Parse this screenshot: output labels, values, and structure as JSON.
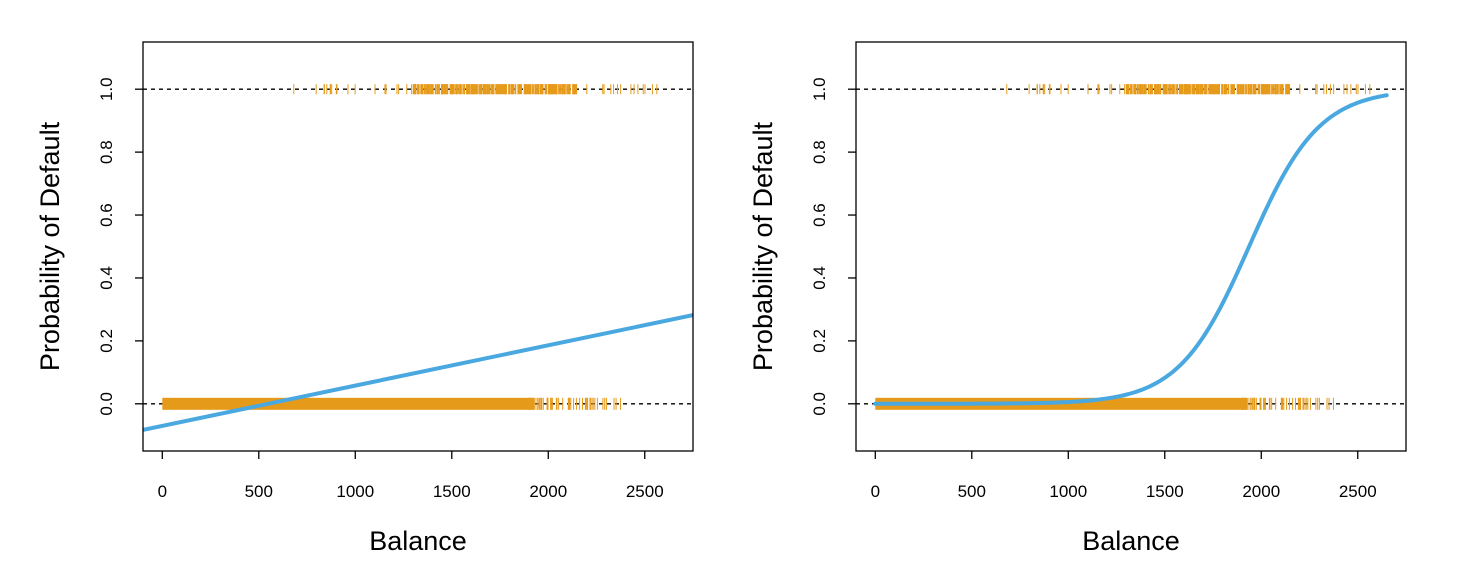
{
  "chart_data": [
    {
      "type": "line",
      "xlabel": "Balance",
      "ylabel": "Probability of Default",
      "xlim": [
        -100,
        2750
      ],
      "ylim": [
        -0.15,
        1.15
      ],
      "x_ticks": [
        0,
        500,
        1000,
        1500,
        2000,
        2500
      ],
      "x_tick_labels": [
        "0",
        "500",
        "1000",
        "1500",
        "2000",
        "2500"
      ],
      "y_ticks": [
        0.0,
        0.2,
        0.4,
        0.6,
        0.8,
        1.0
      ],
      "y_tick_labels": [
        "0.0",
        "0.2",
        "0.4",
        "0.6",
        "0.8",
        "1.0"
      ],
      "reference_lines": [
        0,
        1
      ],
      "grid": false,
      "colors": {
        "fit": "#4aa8e0",
        "rug": "#e69a1a",
        "reference": "#000000"
      },
      "rug_default_yes": {
        "y": 1,
        "x_range": [
          650,
          2650
        ],
        "dense_range": [
          1300,
          2150
        ]
      },
      "rug_default_no": {
        "y": 0,
        "x_range": [
          0,
          2400
        ],
        "solid_range": [
          0,
          1900
        ]
      },
      "fit": {
        "model": "linear",
        "x": [
          -100,
          2750
        ],
        "y": [
          -0.083,
          0.282
        ]
      }
    },
    {
      "type": "line",
      "xlabel": "Balance",
      "ylabel": "Probability of Default",
      "xlim": [
        -100,
        2750
      ],
      "ylim": [
        -0.15,
        1.15
      ],
      "x_ticks": [
        0,
        500,
        1000,
        1500,
        2000,
        2500
      ],
      "x_tick_labels": [
        "0",
        "500",
        "1000",
        "1500",
        "2000",
        "2500"
      ],
      "y_ticks": [
        0.0,
        0.2,
        0.4,
        0.6,
        0.8,
        1.0
      ],
      "y_tick_labels": [
        "0.0",
        "0.2",
        "0.4",
        "0.6",
        "0.8",
        "1.0"
      ],
      "reference_lines": [
        0,
        1
      ],
      "grid": false,
      "colors": {
        "fit": "#4aa8e0",
        "rug": "#e69a1a",
        "reference": "#000000"
      },
      "rug_default_yes": {
        "y": 1,
        "x_range": [
          650,
          2650
        ],
        "dense_range": [
          1300,
          2150
        ]
      },
      "rug_default_no": {
        "y": 0,
        "x_range": [
          0,
          2400
        ],
        "solid_range": [
          0,
          1900
        ]
      },
      "fit": {
        "model": "logistic",
        "x_range": [
          0,
          2650
        ],
        "midpoint": 1937,
        "slope": 0.00551
      }
    }
  ]
}
